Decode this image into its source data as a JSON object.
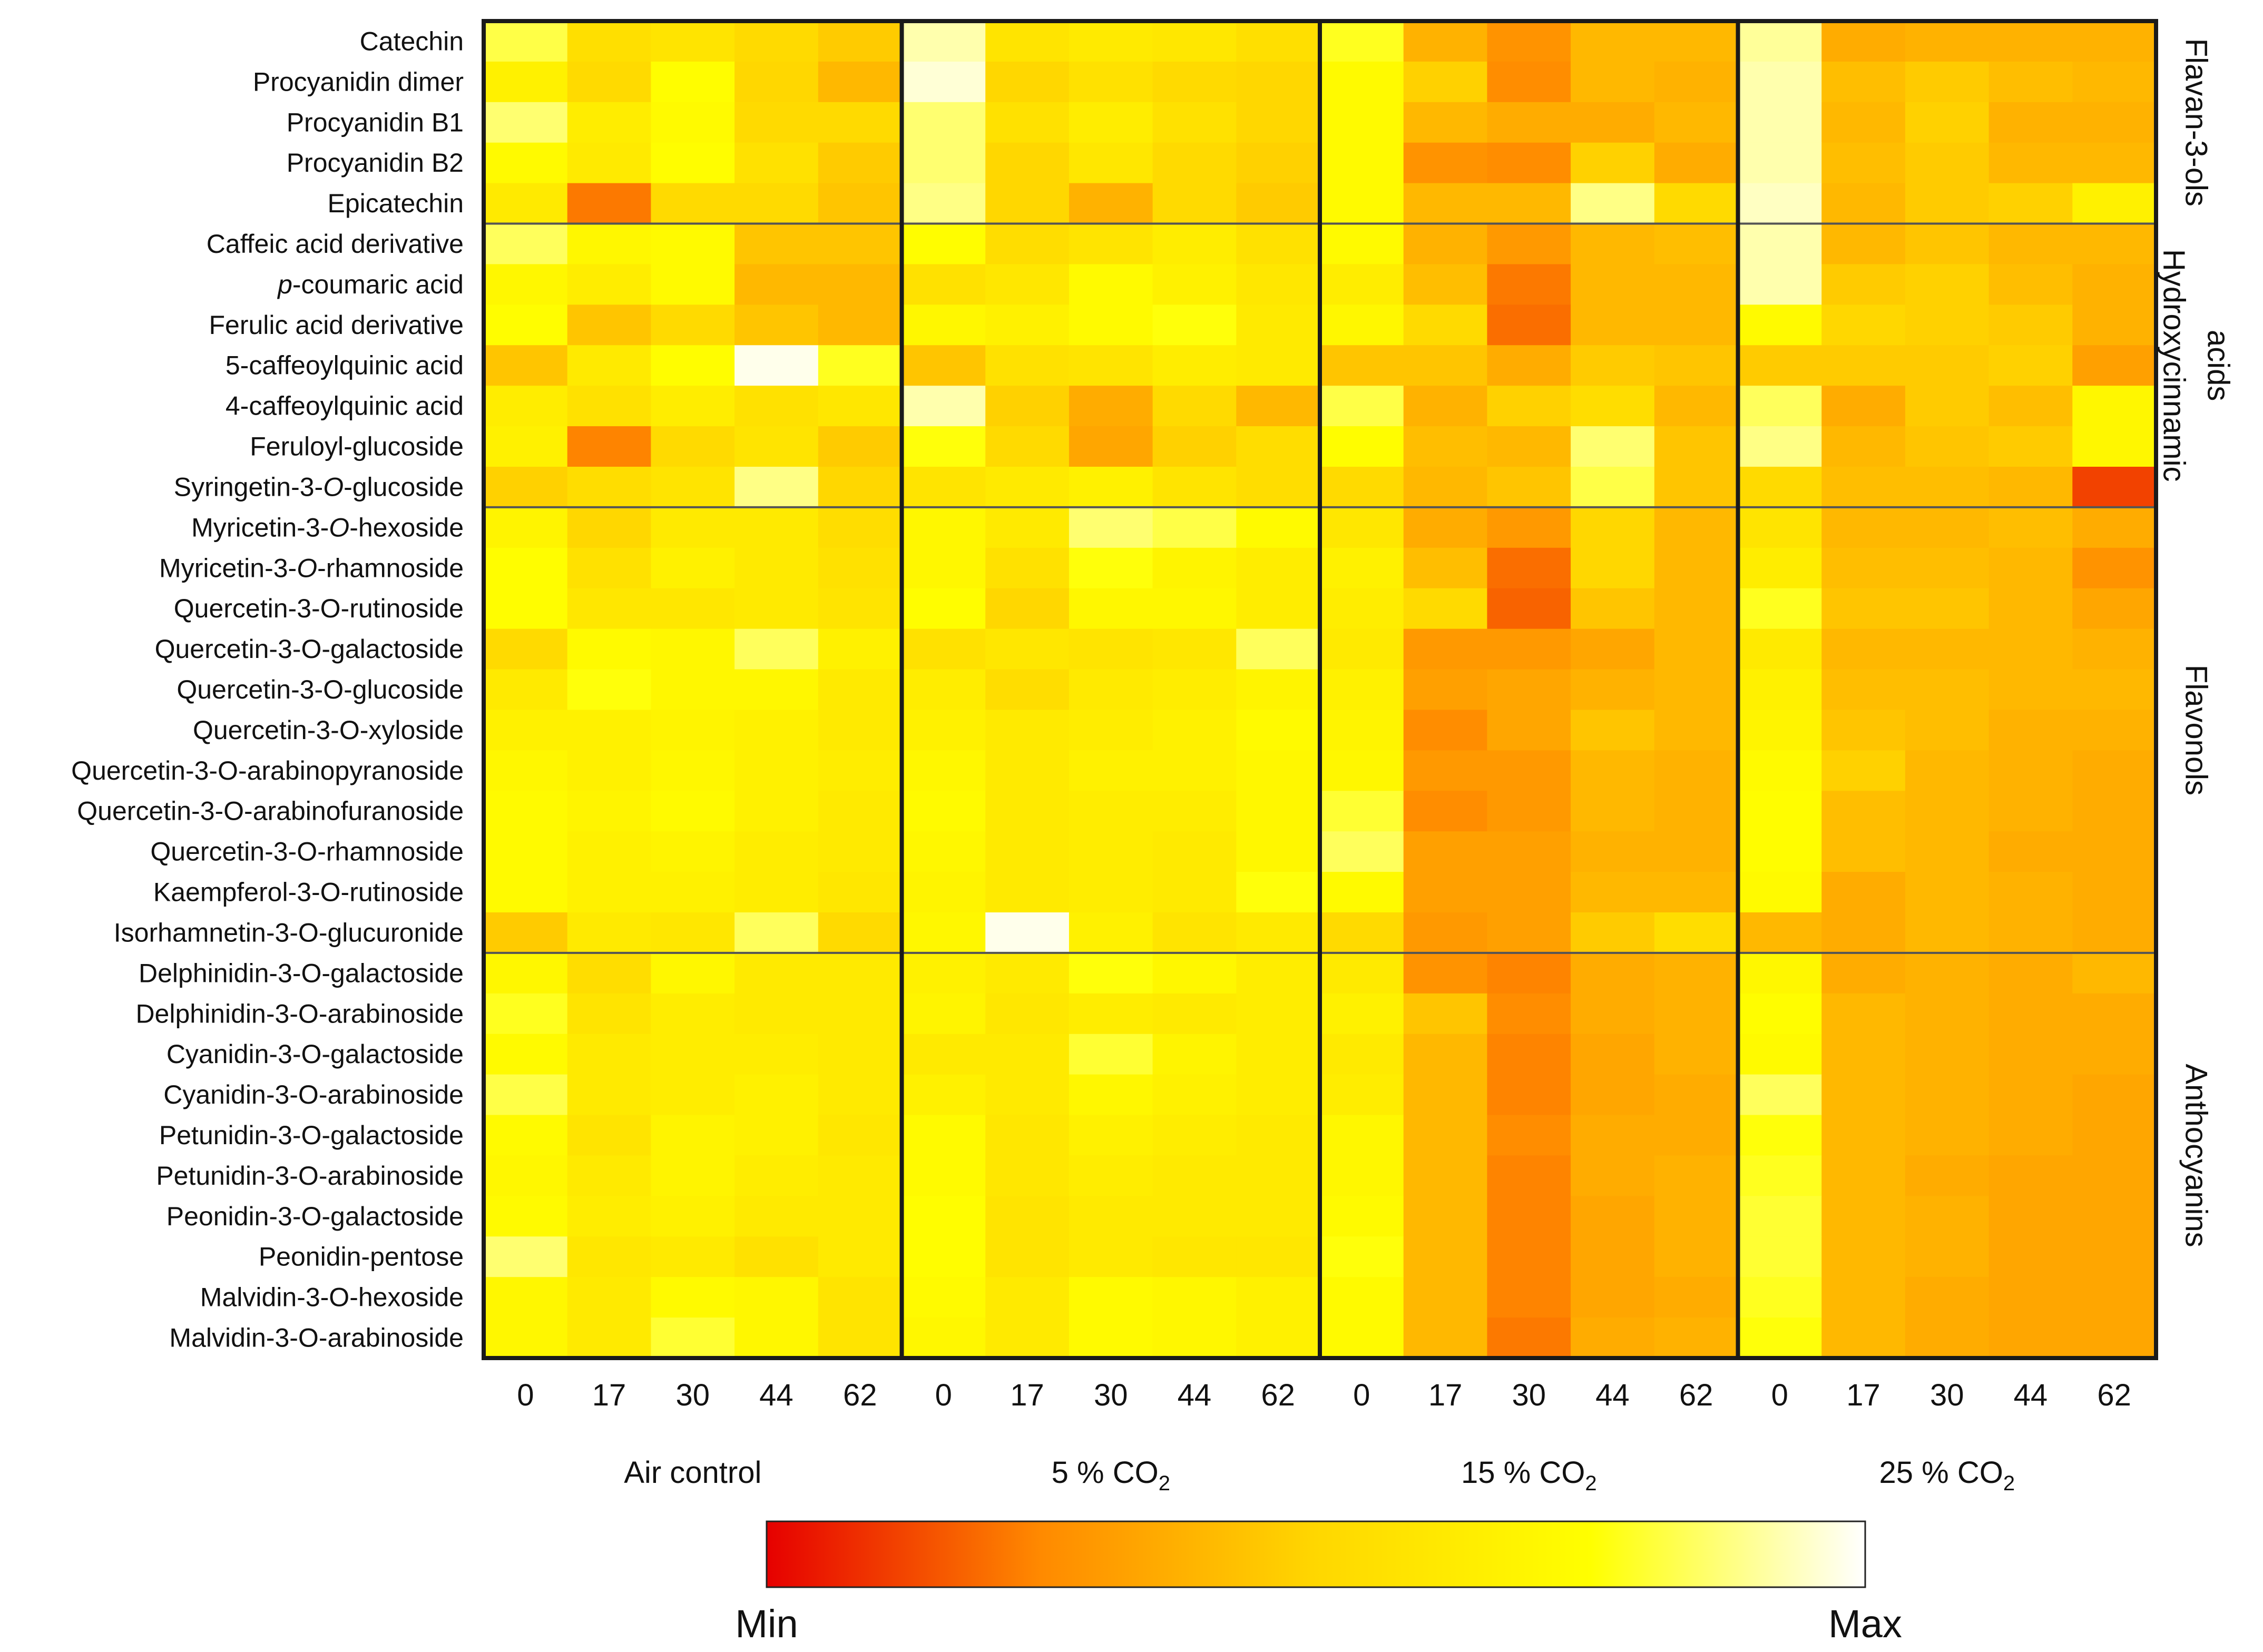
{
  "chart_data": {
    "type": "heatmap",
    "title": "",
    "xlabel": "",
    "ylabel": "",
    "value_scale": "relative (0 = Min, 1 = Max); values estimated from cell colour",
    "colorbar": {
      "min_label": "Min",
      "max_label": "Max",
      "colors": [
        "#e60000",
        "#ff8a00",
        "#ffd700",
        "#ffff00",
        "#ffffff"
      ]
    },
    "groups": [
      {
        "label": "Air control",
        "label_sub": "",
        "label_suffix": "",
        "days": [
          "0",
          "17",
          "30",
          "44",
          "62"
        ]
      },
      {
        "label": "5 % CO",
        "label_sub": "2",
        "label_suffix": "",
        "days": [
          "0",
          "17",
          "30",
          "44",
          "62"
        ]
      },
      {
        "label": "15 % CO",
        "label_sub": "2",
        "label_suffix": "",
        "days": [
          "0",
          "17",
          "30",
          "44",
          "62"
        ]
      },
      {
        "label": "25 % CO",
        "label_sub": "2",
        "label_suffix": "",
        "days": [
          "0",
          "17",
          "30",
          "44",
          "62"
        ]
      }
    ],
    "row_labels": [
      [
        "Catechin"
      ],
      [
        "Procyanidin dimer"
      ],
      [
        "Procyanidin B1"
      ],
      [
        "Procyanidin B2"
      ],
      [
        "Epicatechin"
      ],
      [
        "Caffeic acid derivative"
      ],
      [
        {
          "t": "p",
          "i": true
        },
        "-coumaric acid"
      ],
      [
        "Ferulic acid derivative"
      ],
      [
        "5-caffeoylquinic acid"
      ],
      [
        "4-caffeoylquinic acid"
      ],
      [
        "Feruloyl-glucoside"
      ],
      [
        "Syringetin-3-",
        {
          "t": "O",
          "i": true
        },
        "-glucoside"
      ],
      [
        "Myricetin-3-",
        {
          "t": "O",
          "i": true
        },
        "-hexoside"
      ],
      [
        "Myricetin-3-",
        {
          "t": "O",
          "i": true
        },
        "-rhamnoside"
      ],
      [
        "Quercetin-3-O-rutinoside"
      ],
      [
        "Quercetin-3-O-galactoside"
      ],
      [
        "Quercetin-3-O-glucoside"
      ],
      [
        "Quercetin-3-O-xyloside"
      ],
      [
        "Quercetin-3-O-arabinopyranoside"
      ],
      [
        "Quercetin-3-O-arabinofuranoside"
      ],
      [
        "Quercetin-3-O-rhamnoside"
      ],
      [
        "Kaempferol-3-O-rutinoside"
      ],
      [
        "Isorhamnetin-3-O-glucuronide"
      ],
      [
        "Delphinidin-3-O-galactoside"
      ],
      [
        "Delphinidin-3-O-arabinoside"
      ],
      [
        "Cyanidin-3-O-galactoside"
      ],
      [
        "Cyanidin-3-O-arabinoside"
      ],
      [
        "Petunidin-3-O-galactoside"
      ],
      [
        "Petunidin-3-O-arabinoside"
      ],
      [
        "Peonidin-3-O-galactoside"
      ],
      [
        "Peonidin-pentose"
      ],
      [
        "Malvidin-3-O-hexoside"
      ],
      [
        "Malvidin-3-O-arabinoside"
      ]
    ],
    "categories": [
      {
        "lines": [
          "Flavan-3-ols"
        ],
        "first_row": 0,
        "last_row": 4
      },
      {
        "lines": [
          "Hydroxycinnamic",
          "acids"
        ],
        "first_row": 5,
        "last_row": 11
      },
      {
        "lines": [
          "Flavonols"
        ],
        "first_row": 12,
        "last_row": 22
      },
      {
        "lines": [
          "Anthocyanins"
        ],
        "first_row": 23,
        "last_row": 32
      }
    ],
    "values": [
      [
        0.82,
        0.55,
        0.58,
        0.52,
        0.46,
        0.92,
        0.58,
        0.62,
        0.6,
        0.55,
        0.78,
        0.38,
        0.28,
        0.4,
        0.4,
        0.9,
        0.36,
        0.38,
        0.38,
        0.38
      ],
      [
        0.66,
        0.52,
        0.74,
        0.5,
        0.4,
        0.96,
        0.5,
        0.56,
        0.52,
        0.5,
        0.72,
        0.48,
        0.26,
        0.4,
        0.38,
        0.92,
        0.42,
        0.46,
        0.42,
        0.4
      ],
      [
        0.86,
        0.64,
        0.72,
        0.52,
        0.52,
        0.86,
        0.56,
        0.64,
        0.56,
        0.5,
        0.72,
        0.4,
        0.36,
        0.36,
        0.4,
        0.92,
        0.4,
        0.48,
        0.38,
        0.38
      ],
      [
        0.72,
        0.62,
        0.74,
        0.56,
        0.46,
        0.86,
        0.5,
        0.6,
        0.52,
        0.48,
        0.72,
        0.28,
        0.26,
        0.48,
        0.36,
        0.92,
        0.42,
        0.46,
        0.4,
        0.4
      ],
      [
        0.62,
        0.22,
        0.52,
        0.52,
        0.44,
        0.88,
        0.5,
        0.38,
        0.52,
        0.46,
        0.72,
        0.4,
        0.4,
        0.88,
        0.52,
        0.94,
        0.4,
        0.46,
        0.48,
        0.66
      ],
      [
        0.84,
        0.7,
        0.72,
        0.44,
        0.44,
        0.74,
        0.54,
        0.58,
        0.64,
        0.56,
        0.72,
        0.38,
        0.3,
        0.4,
        0.42,
        0.92,
        0.4,
        0.44,
        0.4,
        0.4
      ],
      [
        0.7,
        0.64,
        0.72,
        0.4,
        0.4,
        0.56,
        0.6,
        0.72,
        0.66,
        0.6,
        0.64,
        0.42,
        0.22,
        0.4,
        0.4,
        0.92,
        0.46,
        0.48,
        0.42,
        0.38
      ],
      [
        0.74,
        0.44,
        0.52,
        0.44,
        0.4,
        0.7,
        0.66,
        0.72,
        0.76,
        0.62,
        0.7,
        0.52,
        0.2,
        0.4,
        0.4,
        0.72,
        0.5,
        0.48,
        0.46,
        0.38
      ],
      [
        0.44,
        0.62,
        0.74,
        0.98,
        0.78,
        0.44,
        0.56,
        0.58,
        0.64,
        0.62,
        0.44,
        0.44,
        0.36,
        0.46,
        0.44,
        0.46,
        0.46,
        0.46,
        0.48,
        0.32
      ],
      [
        0.64,
        0.56,
        0.64,
        0.56,
        0.6,
        0.92,
        0.48,
        0.36,
        0.52,
        0.4,
        0.82,
        0.38,
        0.48,
        0.54,
        0.4,
        0.84,
        0.36,
        0.46,
        0.42,
        0.7
      ],
      [
        0.66,
        0.24,
        0.52,
        0.58,
        0.46,
        0.76,
        0.52,
        0.34,
        0.48,
        0.54,
        0.74,
        0.42,
        0.4,
        0.86,
        0.44,
        0.88,
        0.4,
        0.44,
        0.46,
        0.7
      ],
      [
        0.48,
        0.54,
        0.58,
        0.88,
        0.5,
        0.58,
        0.62,
        0.66,
        0.58,
        0.54,
        0.52,
        0.4,
        0.44,
        0.82,
        0.44,
        0.52,
        0.42,
        0.42,
        0.4,
        0.12
      ],
      [
        0.68,
        0.5,
        0.62,
        0.62,
        0.54,
        0.7,
        0.62,
        0.86,
        0.82,
        0.72,
        0.6,
        0.36,
        0.3,
        0.5,
        0.4,
        0.58,
        0.4,
        0.4,
        0.42,
        0.36
      ],
      [
        0.74,
        0.56,
        0.66,
        0.62,
        0.56,
        0.7,
        0.56,
        0.76,
        0.68,
        0.64,
        0.66,
        0.42,
        0.2,
        0.5,
        0.4,
        0.64,
        0.42,
        0.42,
        0.4,
        0.28
      ],
      [
        0.74,
        0.6,
        0.6,
        0.62,
        0.58,
        0.74,
        0.5,
        0.7,
        0.7,
        0.64,
        0.64,
        0.52,
        0.18,
        0.44,
        0.4,
        0.78,
        0.44,
        0.44,
        0.4,
        0.34
      ],
      [
        0.52,
        0.72,
        0.7,
        0.84,
        0.66,
        0.56,
        0.6,
        0.58,
        0.6,
        0.84,
        0.62,
        0.3,
        0.3,
        0.34,
        0.4,
        0.62,
        0.4,
        0.4,
        0.4,
        0.38
      ],
      [
        0.62,
        0.76,
        0.7,
        0.7,
        0.62,
        0.64,
        0.54,
        0.62,
        0.64,
        0.68,
        0.66,
        0.32,
        0.34,
        0.38,
        0.4,
        0.66,
        0.42,
        0.42,
        0.4,
        0.4
      ],
      [
        0.66,
        0.66,
        0.68,
        0.66,
        0.62,
        0.66,
        0.62,
        0.64,
        0.66,
        0.72,
        0.68,
        0.26,
        0.34,
        0.44,
        0.4,
        0.68,
        0.44,
        0.42,
        0.38,
        0.38
      ],
      [
        0.7,
        0.66,
        0.7,
        0.66,
        0.64,
        0.7,
        0.62,
        0.66,
        0.66,
        0.7,
        0.7,
        0.3,
        0.3,
        0.4,
        0.38,
        0.72,
        0.48,
        0.4,
        0.38,
        0.36
      ],
      [
        0.72,
        0.68,
        0.72,
        0.66,
        0.62,
        0.72,
        0.62,
        0.64,
        0.64,
        0.7,
        0.8,
        0.26,
        0.3,
        0.4,
        0.38,
        0.74,
        0.42,
        0.4,
        0.38,
        0.36
      ],
      [
        0.72,
        0.66,
        0.68,
        0.64,
        0.62,
        0.7,
        0.62,
        0.64,
        0.62,
        0.7,
        0.84,
        0.32,
        0.32,
        0.38,
        0.38,
        0.74,
        0.42,
        0.4,
        0.36,
        0.36
      ],
      [
        0.72,
        0.66,
        0.66,
        0.64,
        0.6,
        0.68,
        0.62,
        0.64,
        0.62,
        0.76,
        0.72,
        0.32,
        0.32,
        0.4,
        0.4,
        0.72,
        0.36,
        0.4,
        0.38,
        0.36
      ],
      [
        0.46,
        0.62,
        0.6,
        0.84,
        0.52,
        0.7,
        0.98,
        0.66,
        0.58,
        0.62,
        0.52,
        0.3,
        0.32,
        0.46,
        0.54,
        0.4,
        0.36,
        0.4,
        0.38,
        0.36
      ],
      [
        0.7,
        0.54,
        0.7,
        0.62,
        0.62,
        0.66,
        0.62,
        0.76,
        0.7,
        0.64,
        0.62,
        0.28,
        0.24,
        0.36,
        0.38,
        0.7,
        0.36,
        0.38,
        0.36,
        0.4
      ],
      [
        0.78,
        0.58,
        0.64,
        0.62,
        0.62,
        0.68,
        0.6,
        0.64,
        0.62,
        0.64,
        0.66,
        0.44,
        0.26,
        0.36,
        0.38,
        0.74,
        0.4,
        0.38,
        0.36,
        0.36
      ],
      [
        0.72,
        0.62,
        0.64,
        0.64,
        0.62,
        0.62,
        0.62,
        0.8,
        0.68,
        0.64,
        0.62,
        0.4,
        0.24,
        0.34,
        0.38,
        0.72,
        0.4,
        0.38,
        0.36,
        0.36
      ],
      [
        0.82,
        0.62,
        0.64,
        0.66,
        0.62,
        0.66,
        0.62,
        0.7,
        0.66,
        0.64,
        0.64,
        0.4,
        0.24,
        0.34,
        0.36,
        0.84,
        0.4,
        0.38,
        0.36,
        0.34
      ],
      [
        0.72,
        0.58,
        0.68,
        0.66,
        0.6,
        0.72,
        0.6,
        0.66,
        0.64,
        0.62,
        0.7,
        0.4,
        0.26,
        0.36,
        0.36,
        0.76,
        0.4,
        0.38,
        0.36,
        0.34
      ],
      [
        0.7,
        0.62,
        0.68,
        0.64,
        0.62,
        0.72,
        0.6,
        0.64,
        0.62,
        0.62,
        0.7,
        0.4,
        0.24,
        0.36,
        0.38,
        0.78,
        0.4,
        0.36,
        0.34,
        0.34
      ],
      [
        0.72,
        0.64,
        0.66,
        0.62,
        0.62,
        0.74,
        0.58,
        0.62,
        0.62,
        0.62,
        0.72,
        0.4,
        0.24,
        0.34,
        0.38,
        0.8,
        0.4,
        0.38,
        0.34,
        0.34
      ],
      [
        0.86,
        0.6,
        0.62,
        0.56,
        0.62,
        0.74,
        0.58,
        0.62,
        0.6,
        0.6,
        0.76,
        0.4,
        0.24,
        0.34,
        0.38,
        0.8,
        0.4,
        0.38,
        0.34,
        0.34
      ],
      [
        0.7,
        0.62,
        0.72,
        0.7,
        0.58,
        0.72,
        0.62,
        0.72,
        0.7,
        0.66,
        0.72,
        0.4,
        0.24,
        0.34,
        0.36,
        0.78,
        0.4,
        0.36,
        0.34,
        0.34
      ],
      [
        0.7,
        0.62,
        0.8,
        0.7,
        0.58,
        0.7,
        0.62,
        0.72,
        0.7,
        0.66,
        0.72,
        0.4,
        0.22,
        0.36,
        0.38,
        0.76,
        0.4,
        0.36,
        0.34,
        0.34
      ]
    ]
  }
}
